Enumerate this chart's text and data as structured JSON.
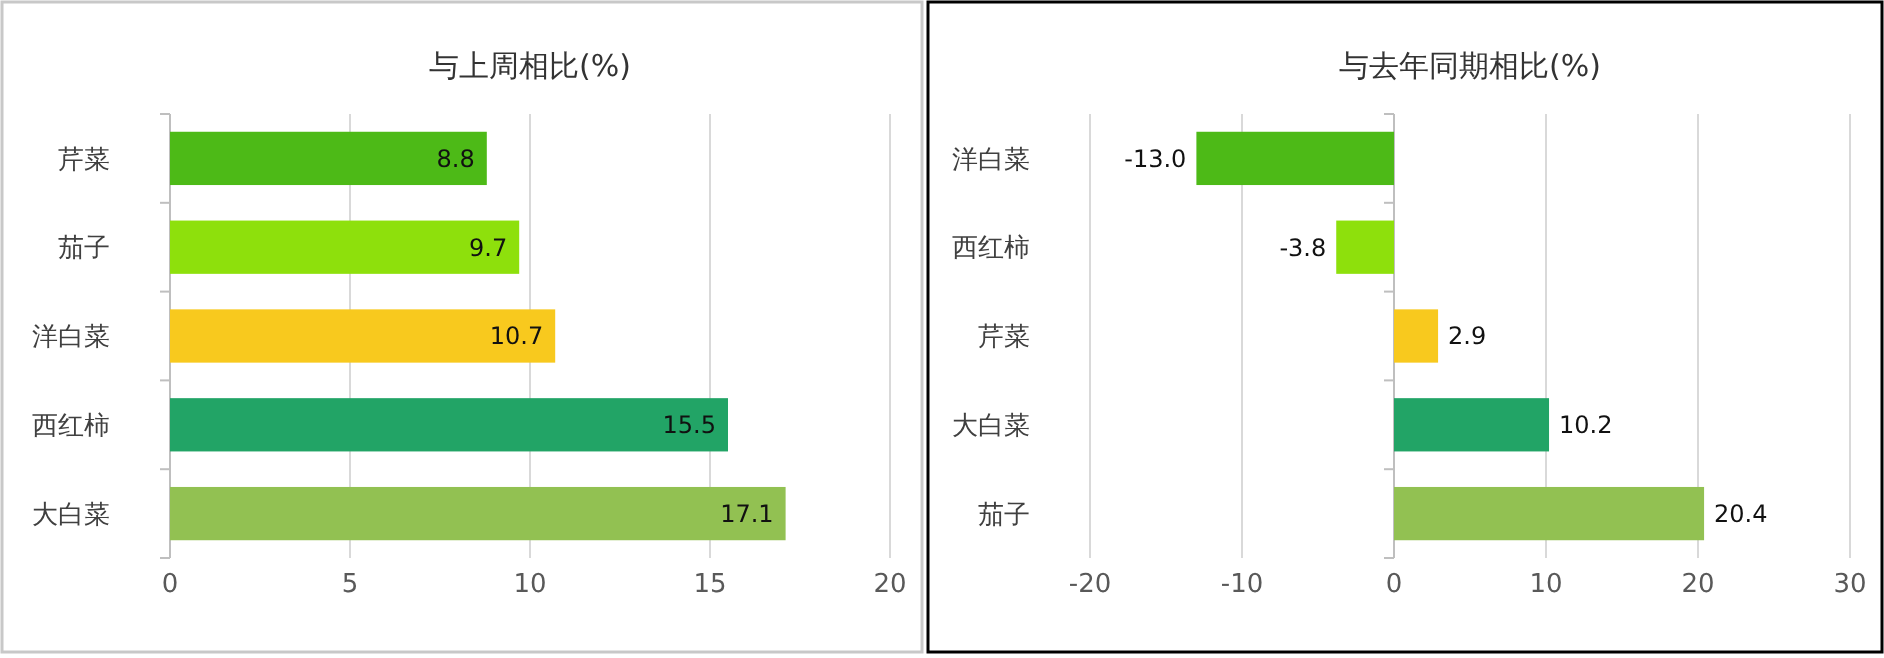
{
  "chart_data": [
    {
      "type": "bar",
      "orientation": "horizontal",
      "title": "与上周相比(%)",
      "categories": [
        "芹菜",
        "茄子",
        "洋白菜",
        "西红柿",
        "大白菜"
      ],
      "values": [
        8.8,
        9.7,
        10.7,
        15.5,
        17.1
      ],
      "colors": [
        "#4dba17",
        "#8ee00c",
        "#f8c91e",
        "#22a466",
        "#92c152"
      ],
      "value_labels": [
        "8.8",
        "9.7",
        "10.7",
        "15.5",
        "17.1"
      ],
      "xlim": [
        0,
        20
      ],
      "xticks": [
        0,
        5,
        10,
        15,
        20
      ],
      "grid": "x"
    },
    {
      "type": "bar",
      "orientation": "horizontal",
      "title": "与去年同期相比(%)",
      "categories": [
        "洋白菜",
        "西红柿",
        "芹菜",
        "大白菜",
        "茄子"
      ],
      "values": [
        -13.0,
        -3.8,
        2.9,
        10.2,
        20.4
      ],
      "colors": [
        "#4dba17",
        "#8ee00c",
        "#f8c91e",
        "#22a466",
        "#92c152"
      ],
      "value_labels": [
        "-13.0",
        "-3.8",
        "2.9",
        "10.2",
        "20.4"
      ],
      "xlim": [
        -20,
        30
      ],
      "xticks": [
        -20,
        -10,
        0,
        10,
        20,
        30
      ],
      "grid": "x"
    }
  ]
}
